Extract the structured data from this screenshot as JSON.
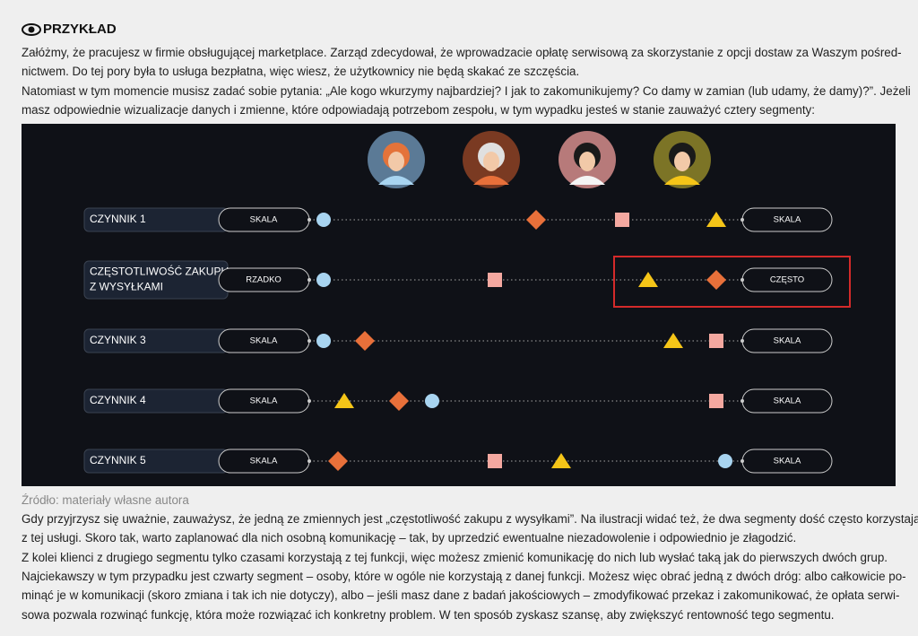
{
  "header": {
    "title": "PRZYKŁAD"
  },
  "intro": {
    "lines": [
      "Załóżmy, że pracujesz w firmie obsługującej marketplace. Zarząd zdecydował, że wprowadzacie opłatę serwisową za skorzystanie z opcji dostaw za Waszym pośred-",
      "nictwem. Do tej pory była to usługa bezpłatna, więc wiesz, że użytkownicy nie będą skakać ze szczęścia.",
      "Natomiast w tym momencie musisz zadać sobie pytania: „Ale kogo wkurzymy najbardziej? I jak to zakomunikujemy? Co damy w zamian (lub udamy, że damy)?”. Jeżeli",
      "masz odpowiednie wizualizacje danych i zmienne, które odpowiadają potrzebom zespołu, w tym wypadku jesteś w stanie zauważyć cztery segmenty:"
    ]
  },
  "diagram": {
    "rows": [
      {
        "label_lines": [
          "CZYNNIK 1"
        ],
        "left": "SKALA",
        "right": "SKALA"
      },
      {
        "label_lines": [
          "CZĘSTOTLIWOŚĆ ZAKUPU",
          "Z WYSYŁKAMI"
        ],
        "left": "RZADKO",
        "right": "CZĘSTO"
      },
      {
        "label_lines": [
          "CZYNNIK 3"
        ],
        "left": "SKALA",
        "right": "SKALA"
      },
      {
        "label_lines": [
          "CZYNNIK 4"
        ],
        "left": "SKALA",
        "right": "SKALA"
      },
      {
        "label_lines": [
          "CZYNNIK 5"
        ],
        "left": "SKALA",
        "right": "SKALA"
      }
    ]
  },
  "caption": "Źródło: materiały własne autora",
  "body": {
    "lines": [
      "Gdy przyjrzysz się uważnie, zauważysz, że jedną ze zmiennych jest „częstotliwość zakupu z wysyłkami”. Na ilustracji widać też, że dwa segmenty dość często korzystają",
      "z tej usługi. Skoro tak, warto zaplanować dla nich osobną komunikację – tak, by uprzedzić ewentualne niezadowolenie i odpowiednio je złagodzić.",
      "Z kolei klienci z drugiego segmentu tylko czasami korzystają z tej funkcji, więc możesz zmienić komunikację do nich lub wysłać taką jak do pierwszych dwóch grup.",
      "Najciekawszy w tym przypadku jest czwarty segment – osoby, które w ogóle nie korzystają z danej funkcji. Możesz więc obrać jedną z dwóch dróg: albo całkowicie po-",
      "minąć je w komunikacji (skoro zmiana i tak ich nie dotyczy), albo – jeśli masz dane z badań jakościowych – zmodyfikować przekaz i zakomunikować, że opłata serwi-",
      "sowa pozwala rozwinąć funkcję, która może rozwiązać ich konkretny problem. W ten sposób zyskasz szansę, aby zwiększyć rentowność tego segmentu."
    ]
  }
}
